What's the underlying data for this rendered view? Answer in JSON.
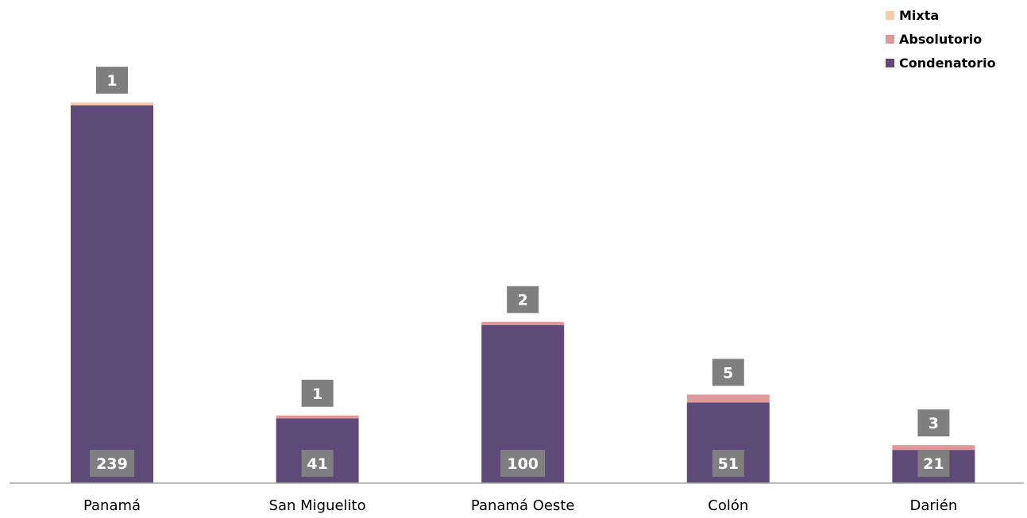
{
  "chart_data": {
    "type": "bar",
    "stacked": true,
    "categories": [
      "Panamá",
      "San Miguelito",
      "Panamá Oeste",
      "Colón",
      "Darién"
    ],
    "series": [
      {
        "name": "Condenatorio",
        "color": "#5e4a78",
        "values": [
          239,
          41,
          100,
          51,
          21
        ]
      },
      {
        "name": "Absolutorio",
        "color": "#de9a9a",
        "values": [
          0,
          1,
          2,
          5,
          3
        ]
      },
      {
        "name": "Mixta",
        "color": "#f9cba8",
        "values": [
          1,
          0,
          0,
          0,
          0
        ]
      }
    ],
    "top_labels": [
      "1",
      "1",
      "2",
      "5",
      "3"
    ],
    "bottom_labels": [
      "239",
      "41",
      "100",
      "51",
      "21"
    ],
    "legend_order": [
      "Mixta",
      "Absolutorio",
      "Condenatorio"
    ],
    "legend_position": "top-right",
    "ylim": [
      0,
      240
    ],
    "grid": false,
    "label_box_color": "#7f7f7f"
  }
}
